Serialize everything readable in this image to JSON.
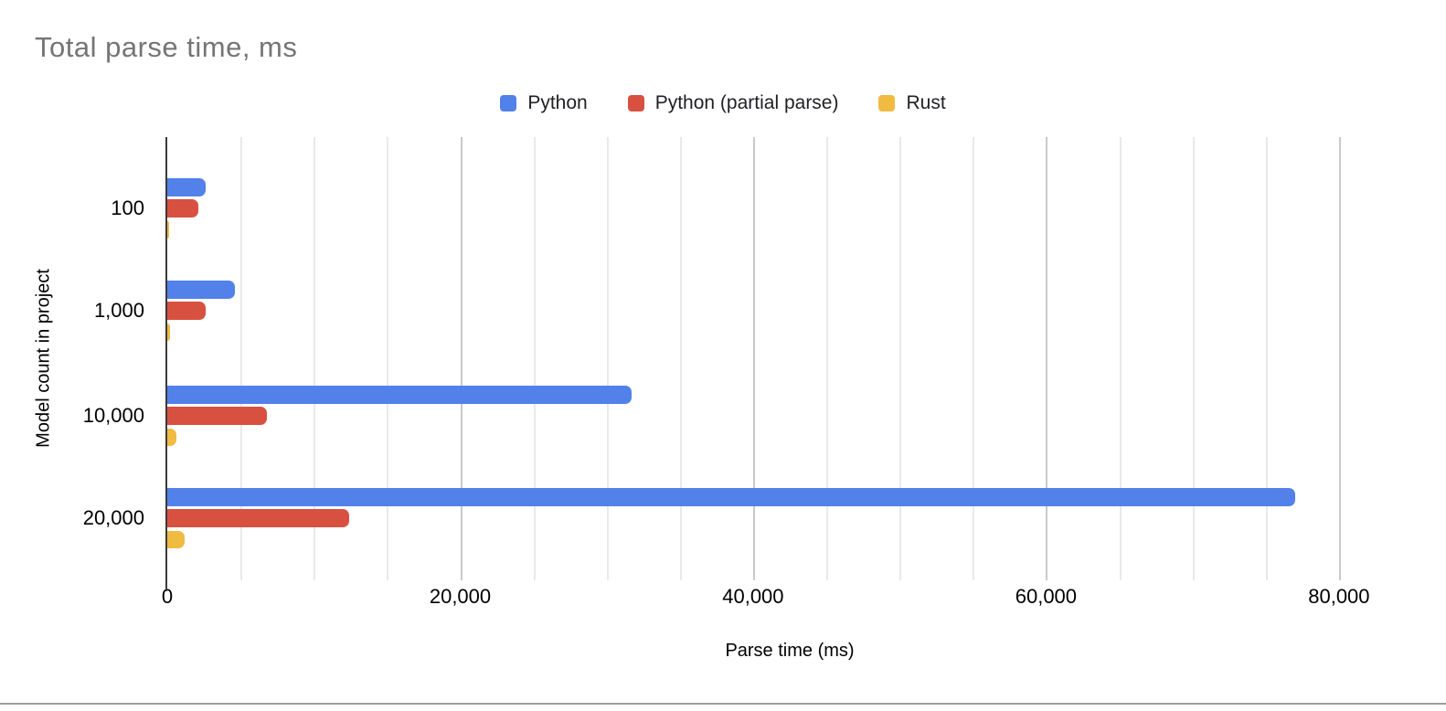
{
  "title": "Total parse time, ms",
  "colors": {
    "title_text": "#757575",
    "axis_text": "#000000",
    "minor_gridline": "#e9e9e9",
    "major_gridline": "#c9c9c9",
    "axis_line": "#3a3a3a",
    "page_divider": "#9e9e9e",
    "series_blue": "#5281E9",
    "series_red": "#D85140",
    "series_yellow": "#F0BB41"
  },
  "chart_data": {
    "type": "bar",
    "orientation": "horizontal",
    "title": "Total parse time, ms",
    "xlabel": "Parse time (ms)",
    "ylabel": "Model count in project",
    "categories": [
      "100",
      "1,000",
      "10,000",
      "20,000"
    ],
    "series": [
      {
        "name": "Python",
        "color": "#5281E9",
        "values": [
          2600,
          4600,
          31700,
          77000
        ]
      },
      {
        "name": "Python (partial parse)",
        "color": "#D85140",
        "values": [
          2100,
          2600,
          6800,
          12400
        ]
      },
      {
        "name": "Rust",
        "color": "#F0BB41",
        "values": [
          120,
          160,
          620,
          1200
        ]
      }
    ],
    "xlim": [
      0,
      85000
    ],
    "gridline_step": 5000,
    "major_gridline_step": 20000,
    "x_ticks": [
      {
        "value": 0,
        "label": "0"
      },
      {
        "value": 20000,
        "label": "20,000"
      },
      {
        "value": 40000,
        "label": "40,000"
      },
      {
        "value": 60000,
        "label": "60,000"
      },
      {
        "value": 80000,
        "label": "80,000"
      }
    ],
    "legend_position": "top",
    "grid": true
  }
}
